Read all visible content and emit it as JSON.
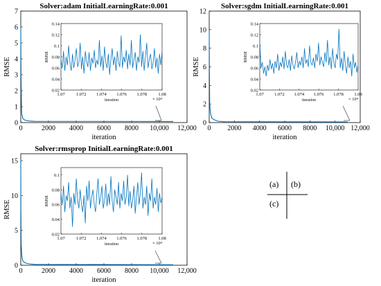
{
  "chart_data": [
    {
      "id": "a",
      "type": "line",
      "title": "Solver:adam  InitialLearningRate:0.001",
      "xlabel": "iteration",
      "ylabel": "RMSE",
      "xlim": [
        0,
        12000
      ],
      "ylim": [
        0,
        7
      ],
      "xticks": [
        0,
        2000,
        4000,
        6000,
        8000,
        10000,
        12000
      ],
      "xtick_labels": [
        "0",
        "2000",
        "4000",
        "6000",
        "8000",
        "10,000",
        "12,000"
      ],
      "yticks": [
        0,
        1,
        2,
        3,
        4,
        5,
        6,
        7
      ],
      "ytick_labels": [
        "0",
        "1",
        "2",
        "3",
        "4",
        "5",
        "6",
        "7"
      ],
      "grid": false,
      "color": "#0072BD",
      "series": [
        {
          "x": [
            0,
            20,
            60,
            150,
            300,
            600,
            1000,
            11000
          ],
          "y": [
            6.0,
            3.0,
            0.6,
            0.25,
            0.15,
            0.1,
            0.08,
            0.07
          ]
        }
      ],
      "inset": {
        "xlim": [
          1.07,
          1.08
        ],
        "ylim": [
          0.02,
          0.14
        ],
        "xticks": [
          1.07,
          1.072,
          1.074,
          1.076,
          1.078,
          1.08
        ],
        "xtick_labels": [
          "1.07",
          "1.072",
          "1.074",
          "1.076",
          "1.078",
          "1.08"
        ],
        "yticks": [
          0.02,
          0.04,
          0.06,
          0.08,
          0.1,
          0.12,
          0.14
        ],
        "ytick_labels": [
          "0.02",
          "0.04",
          "0.06",
          "0.08",
          "0.1",
          "0.12",
          "0.14"
        ],
        "xlabel": "iteration",
        "ylabel": "RMSE",
        "exponent": "× 10⁴",
        "values": [
          0.075,
          0.06,
          0.09,
          0.055,
          0.08,
          0.065,
          0.1,
          0.07,
          0.055,
          0.085,
          0.06,
          0.075,
          0.095,
          0.062,
          0.07,
          0.105,
          0.058,
          0.08,
          0.05,
          0.09,
          0.072,
          0.062,
          0.088,
          0.055,
          0.078,
          0.068,
          0.092,
          0.06,
          0.074,
          0.066,
          0.11,
          0.062,
          0.082,
          0.055,
          0.098,
          0.07,
          0.06,
          0.085,
          0.048,
          0.075,
          0.095,
          0.065,
          0.08,
          0.055,
          0.09,
          0.07,
          0.062,
          0.118,
          0.06,
          0.08,
          0.07,
          0.092,
          0.058,
          0.085,
          0.065,
          0.11,
          0.06,
          0.075,
          0.088,
          0.055,
          0.08,
          0.07,
          0.12,
          0.062,
          0.09,
          0.055,
          0.08,
          0.105,
          0.06,
          0.075,
          0.085,
          0.058,
          0.07,
          0.095,
          0.06,
          0.078,
          0.05,
          0.085,
          0.065,
          0.09
        ]
      }
    },
    {
      "id": "b",
      "type": "line",
      "title": "Solver:sgdm  InitialLearningRate:0.001",
      "xlabel": "iteration",
      "ylabel": "RMSE",
      "xlim": [
        0,
        12000
      ],
      "ylim": [
        0,
        12
      ],
      "xticks": [
        0,
        2000,
        4000,
        6000,
        8000,
        10000,
        12000
      ],
      "xtick_labels": [
        "0",
        "2000",
        "4000",
        "6000",
        "8000",
        "10,000",
        "12,000"
      ],
      "yticks": [
        0,
        2,
        4,
        6,
        8,
        10,
        12
      ],
      "ytick_labels": [
        "0",
        "2",
        "4",
        "6",
        "8",
        "10",
        "12"
      ],
      "grid": false,
      "color": "#0072BD",
      "series": [
        {
          "x": [
            0,
            15,
            40,
            100,
            200,
            400,
            700,
            1200,
            11000
          ],
          "y": [
            10.0,
            6.0,
            2.0,
            1.0,
            0.5,
            0.3,
            0.15,
            0.1,
            0.07
          ]
        }
      ],
      "inset": {
        "xlim": [
          1.07,
          1.08
        ],
        "ylim": [
          0.02,
          0.14
        ],
        "xticks": [
          1.07,
          1.072,
          1.074,
          1.076,
          1.078,
          1.08
        ],
        "xtick_labels": [
          "1.07",
          "1.072",
          "1.074",
          "1.076",
          "1.078",
          "1.08"
        ],
        "yticks": [
          0.02,
          0.04,
          0.06,
          0.08,
          0.1,
          0.12,
          0.14
        ],
        "ytick_labels": [
          "0.02",
          "0.04",
          "0.06",
          "0.08",
          "0.1",
          "0.12",
          "0.14"
        ],
        "xlabel": "iteration",
        "ylabel": "RMSE",
        "exponent": "× 10⁴",
        "values": [
          0.105,
          0.06,
          0.07,
          0.05,
          0.062,
          0.045,
          0.065,
          0.055,
          0.075,
          0.058,
          0.068,
          0.05,
          0.072,
          0.06,
          0.085,
          0.055,
          0.07,
          0.062,
          0.08,
          0.058,
          0.09,
          0.065,
          0.06,
          0.075,
          0.055,
          0.082,
          0.065,
          0.058,
          0.07,
          0.088,
          0.06,
          0.072,
          0.065,
          0.08,
          0.06,
          0.095,
          0.068,
          0.075,
          0.062,
          0.1,
          0.07,
          0.065,
          0.078,
          0.06,
          0.085,
          0.072,
          0.105,
          0.065,
          0.08,
          0.07,
          0.062,
          0.088,
          0.07,
          0.11,
          0.065,
          0.08,
          0.058,
          0.095,
          0.07,
          0.06,
          0.085,
          0.075,
          0.13,
          0.06,
          0.078,
          0.055,
          0.09,
          0.065,
          0.05,
          0.08,
          0.06,
          0.072,
          0.045,
          0.085,
          0.06,
          0.07,
          0.052,
          0.065
        ]
      }
    },
    {
      "id": "c",
      "type": "line",
      "title": "Solver:rmsprop  InitialLearningRate:0.001",
      "xlabel": "iteration",
      "ylabel": "RMSE",
      "xlim": [
        0,
        12000
      ],
      "ylim": [
        0,
        16
      ],
      "xticks": [
        0,
        2000,
        4000,
        6000,
        8000,
        10000,
        12000
      ],
      "xtick_labels": [
        "0",
        "2000",
        "4000",
        "6000",
        "8000",
        "10,000",
        "12,000"
      ],
      "yticks": [
        0,
        5,
        10,
        15
      ],
      "ytick_labels": [
        "0",
        "5",
        "10",
        "15"
      ],
      "grid": false,
      "color": "#0072BD",
      "series": [
        {
          "x": [
            0,
            10,
            30,
            80,
            150,
            300,
            600,
            1000,
            11000
          ],
          "y": [
            15.0,
            8.0,
            3.0,
            1.2,
            0.6,
            0.35,
            0.2,
            0.12,
            0.07
          ]
        }
      ],
      "inset": {
        "xlim": [
          1.07,
          1.08
        ],
        "ylim": [
          0.02,
          0.11
        ],
        "xticks": [
          1.07,
          1.072,
          1.074,
          1.076,
          1.078,
          1.08
        ],
        "xtick_labels": [
          "1.07",
          "1.072",
          "1.074",
          "1.076",
          "1.078",
          "1.08"
        ],
        "yticks": [
          0.02,
          0.04,
          0.06,
          0.08,
          0.1
        ],
        "ytick_labels": [
          "0.02",
          "0.04",
          "0.06",
          "0.08",
          "0.1"
        ],
        "xlabel": "iteration",
        "ylabel": "RMSE",
        "exponent": "× 10⁴",
        "values": [
          0.075,
          0.06,
          0.085,
          0.05,
          0.072,
          0.065,
          0.09,
          0.055,
          0.07,
          0.03,
          0.075,
          0.06,
          0.095,
          0.065,
          0.055,
          0.08,
          0.06,
          0.05,
          0.072,
          0.035,
          0.085,
          0.065,
          0.092,
          0.055,
          0.07,
          0.08,
          0.06,
          0.05,
          0.075,
          0.095,
          0.06,
          0.07,
          0.085,
          0.055,
          0.065,
          0.088,
          0.058,
          0.075,
          0.06,
          0.098,
          0.065,
          0.05,
          0.08,
          0.07,
          0.06,
          0.09,
          0.055,
          0.075,
          0.065,
          0.092,
          0.06,
          0.07,
          0.1,
          0.058,
          0.078,
          0.055,
          0.065,
          0.085,
          0.048,
          0.07,
          0.09,
          0.06,
          0.075,
          0.103,
          0.055,
          0.07,
          0.06,
          0.085,
          0.045,
          0.075,
          0.065,
          0.095,
          0.055,
          0.07,
          0.06,
          0.082,
          0.05,
          0.075,
          0.062,
          0.07
        ]
      }
    }
  ],
  "legend": {
    "cell_a": "(a)",
    "cell_b": "(b)",
    "cell_c": "(c)"
  }
}
